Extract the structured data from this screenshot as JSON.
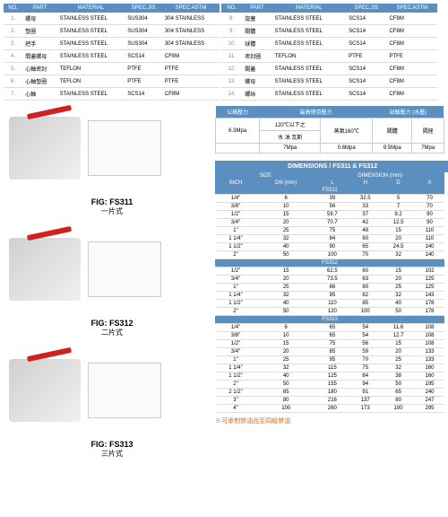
{
  "parts_headers": [
    "NO.",
    "PART",
    "MATERIAL",
    "SPEC.JIS",
    "SPEC.ASTM"
  ],
  "parts_left": [
    [
      "1.",
      "螺母",
      "STAINLESS STEEL",
      "SUS304",
      "304 STAINLESS"
    ],
    [
      "2.",
      "墊圈",
      "STAINLESS STEEL",
      "SUS304",
      "304 STAINLESS"
    ],
    [
      "3.",
      "把手",
      "STAINLESS STEEL",
      "SUS304",
      "304 STAINLESS"
    ],
    [
      "4.",
      "間蓋螺母",
      "STAINLESS STEEL",
      "SCS14",
      "CF8M"
    ],
    [
      "5.",
      "心軸密封",
      "TEFLON",
      "PTFE",
      "PTFE"
    ],
    [
      "6.",
      "心軸墊圈",
      "TEFLON",
      "PTFE",
      "PTFE"
    ],
    [
      "7.",
      "心軸",
      "STAINLESS STEEL",
      "SCS14",
      "CF8M"
    ]
  ],
  "parts_right": [
    [
      "8.",
      "旋塞",
      "STAINLESS STEEL",
      "SCS14",
      "CF8M"
    ],
    [
      "9.",
      "閥體",
      "STAINLESS STEEL",
      "SCS14",
      "CF8M"
    ],
    [
      "10.",
      "球體",
      "STAINLESS STEEL",
      "SCS14",
      "CF8M"
    ],
    [
      "11.",
      "密封圈",
      "TEFLON",
      "PTFE",
      "PTFE"
    ],
    [
      "12.",
      "閥蓋",
      "STAINLESS STEEL",
      "SCS14",
      "CF8M"
    ],
    [
      "13.",
      "螺母",
      "STAINLESS STEEL",
      "SCS14",
      "CF8M"
    ],
    [
      "14.",
      "螺絲",
      "STAINLESS STEEL",
      "SCS14",
      "CF8M"
    ]
  ],
  "pressure": {
    "headers": [
      "公稱壓力",
      "最高使用壓力",
      "試驗壓力 (水壓)"
    ],
    "sub1": [
      "",
      "120℃以下之",
      "蒸氣160℃",
      "閥體",
      "閥座"
    ],
    "sub2": [
      "6.3Mpa",
      "水 油 瓦斯",
      "",
      "",
      ""
    ],
    "row": [
      "",
      "7Mpa",
      "0.6Mpa",
      "9.5Mpa",
      "7Mpa"
    ]
  },
  "dim_title": "DIMENSIONS / FS311 & FS312",
  "dim_headers_top": [
    "SIZE",
    "DIMENSION (mm)"
  ],
  "dim_headers": [
    "INCH",
    "DN (mm)",
    "L",
    "H",
    "D",
    "A"
  ],
  "fs311": [
    [
      "1/4\"",
      "6",
      "39",
      "32.5",
      "5",
      "70"
    ],
    [
      "3/8\"",
      "10",
      "56",
      "33",
      "7",
      "70"
    ],
    [
      "1/2\"",
      "15",
      "59.7",
      "37",
      "9.2",
      "90"
    ],
    [
      "3/4\"",
      "20",
      "70.7",
      "42",
      "12.5",
      "90"
    ],
    [
      "1\"",
      "25",
      "75",
      "48",
      "15",
      "110"
    ],
    [
      "1 1/4\"",
      "32",
      "84",
      "60",
      "20",
      "110"
    ],
    [
      "1 1/2\"",
      "40",
      "90",
      "65",
      "24.5",
      "140"
    ],
    [
      "2\"",
      "50",
      "100",
      "70",
      "32",
      "140"
    ]
  ],
  "fs312": [
    [
      "1/2\"",
      "15",
      "62.5",
      "60",
      "15",
      "102"
    ],
    [
      "3/4\"",
      "20",
      "73.5",
      "63",
      "20",
      "125"
    ],
    [
      "1\"",
      "25",
      "86",
      "80",
      "25",
      "125"
    ],
    [
      "1 1/4\"",
      "32",
      "95",
      "82",
      "32",
      "143"
    ],
    [
      "1 1/2\"",
      "40",
      "110",
      "85",
      "40",
      "178"
    ],
    [
      "2\"",
      "50",
      "120",
      "100",
      "50",
      "178"
    ]
  ],
  "fs313": [
    [
      "1/4\"",
      "6",
      "65",
      "54",
      "11.6",
      "108"
    ],
    [
      "3/8\"",
      "10",
      "65",
      "54",
      "12.7",
      "108"
    ],
    [
      "1/2\"",
      "15",
      "75",
      "56",
      "15",
      "108"
    ],
    [
      "3/4\"",
      "20",
      "85",
      "59",
      "20",
      "133"
    ],
    [
      "1\"",
      "25",
      "95",
      "70",
      "25",
      "133"
    ],
    [
      "1 1/4\"",
      "32",
      "115",
      "75",
      "32",
      "160"
    ],
    [
      "1 1/2\"",
      "40",
      "125",
      "84",
      "38",
      "160"
    ],
    [
      "2\"",
      "50",
      "155",
      "94",
      "50",
      "195"
    ],
    [
      "2 1/2\"",
      "65",
      "180",
      "91",
      "65",
      "240"
    ],
    [
      "3\"",
      "80",
      "216",
      "137",
      "80",
      "247"
    ],
    [
      "4\"",
      "100",
      "260",
      "173",
      "100",
      "295"
    ]
  ],
  "note": "※可承制禁油品至四級禁油",
  "figs": [
    {
      "title": "FIG: FS311",
      "sub": "一片式"
    },
    {
      "title": "FIG: FS312",
      "sub": "二片式"
    },
    {
      "title": "FIG: FS313",
      "sub": "三片式"
    }
  ],
  "colors": {
    "header_bg": "#5a8fc0",
    "header_fg": "#ffffff",
    "handle": "#d02020",
    "note": "#d07020"
  }
}
